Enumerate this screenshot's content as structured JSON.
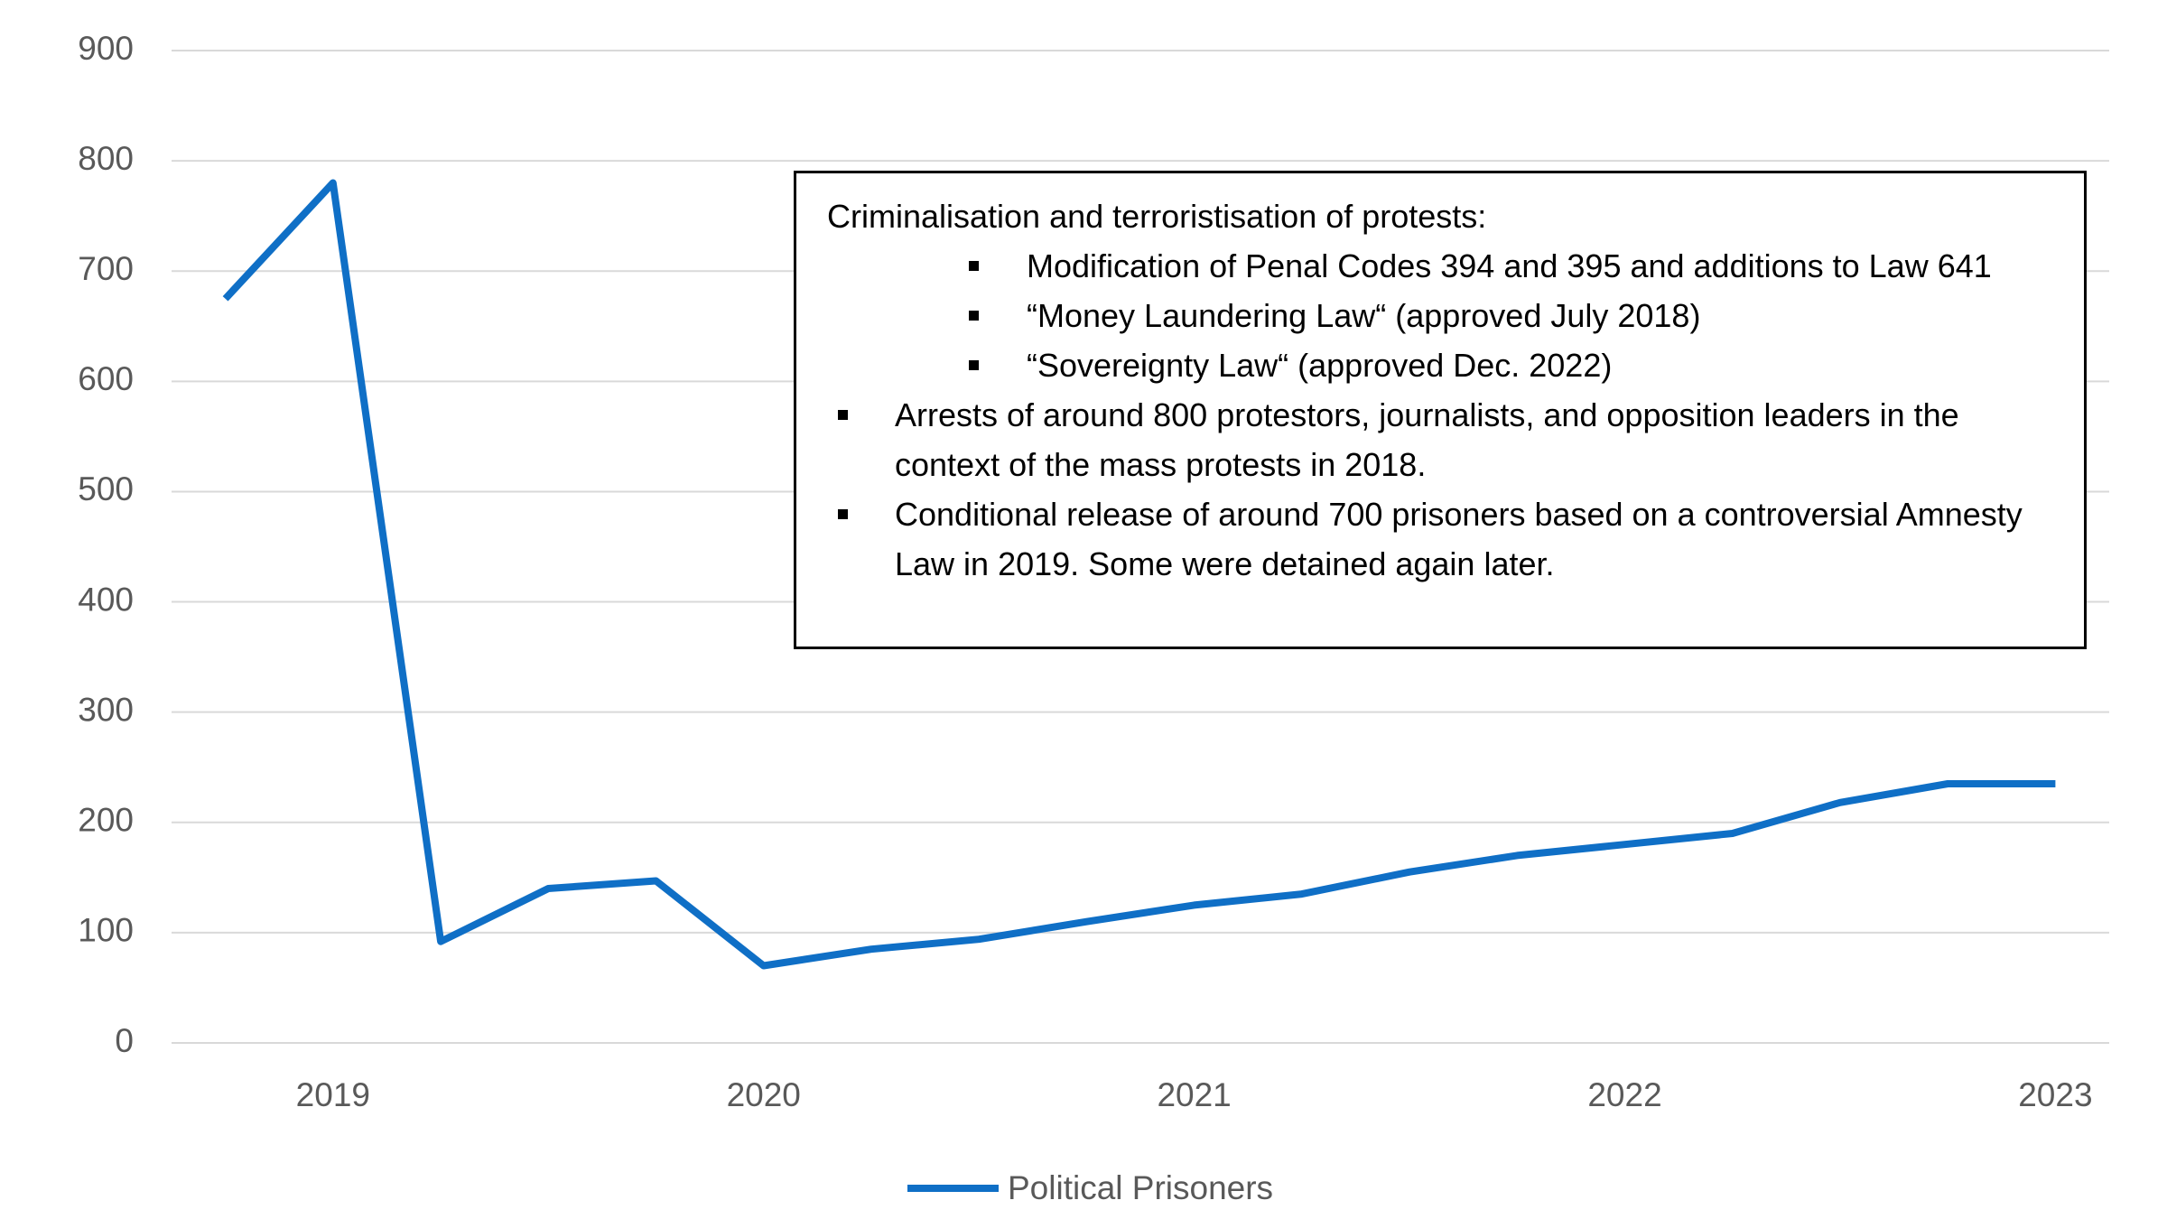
{
  "chart_data": {
    "type": "line",
    "categories": [
      null,
      "2019",
      null,
      null,
      null,
      "2020",
      null,
      null,
      null,
      "2021",
      null,
      null,
      null,
      "2022",
      null,
      null,
      null,
      "2023"
    ],
    "series": [
      {
        "name": "Political Prisoners",
        "color": "#0f6fc6",
        "values": [
          675,
          780,
          92,
          140,
          147,
          70,
          85,
          94,
          110,
          125,
          135,
          155,
          170,
          180,
          190,
          218,
          235,
          235
        ]
      }
    ],
    "ylim": [
      0,
      900
    ],
    "yticks": [
      0,
      100,
      200,
      300,
      400,
      500,
      600,
      700,
      800,
      900
    ],
    "grid": true,
    "legend": "bottom",
    "annotation": {
      "heading": "Criminalisation and terroristisation of protests:",
      "subitems": [
        "Modification of Penal Codes 394 and 395 and additions to Law 641",
        "“Money Laundering Law“  (approved July 2018)",
        "“Sovereignty Law“ (approved Dec. 2022)"
      ],
      "items": [
        "Arrests of around 800 protestors, journalists, and opposition leaders in the context of the mass protests in 2018.",
        "Conditional release of around 700 prisoners based on a controversial Amnesty Law in 2019. Some were detained again later."
      ]
    }
  }
}
